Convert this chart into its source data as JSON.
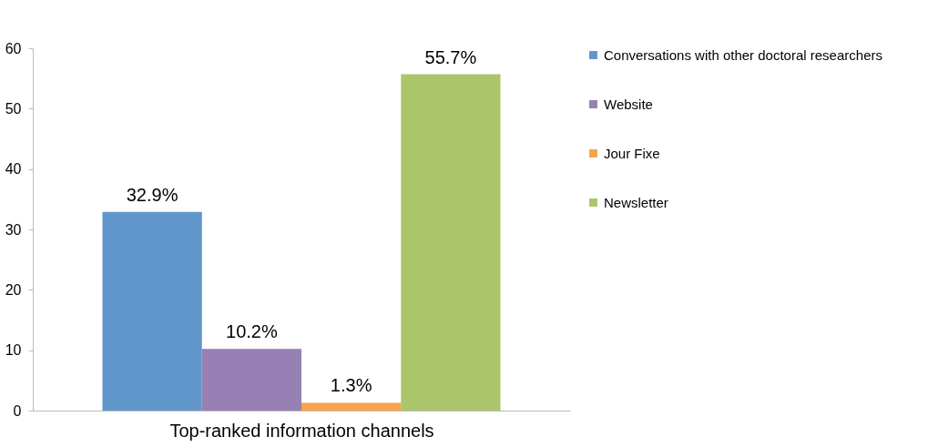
{
  "chart_data": {
    "type": "bar",
    "xlabel": "Top-ranked information channels",
    "categories": [
      null
    ],
    "series": [
      {
        "name": "Conversations with other doctoral researchers",
        "color": "#6096c9",
        "values": [
          32.9
        ],
        "value_labels": [
          "32.9%"
        ]
      },
      {
        "name": "Website",
        "color": "#9680b4",
        "values": [
          10.2
        ],
        "value_labels": [
          "10.2%"
        ]
      },
      {
        "name": "Jour Fixe",
        "color": "#f6a24f",
        "values": [
          1.3
        ],
        "value_labels": [
          "1.3%"
        ]
      },
      {
        "name": "Newsletter",
        "color": "#abc56a",
        "values": [
          55.7
        ],
        "value_labels": [
          "55.7%"
        ]
      }
    ],
    "ylim": [
      0,
      60
    ],
    "yticks": [
      0,
      10,
      20,
      30,
      40,
      50,
      60
    ],
    "grid": false,
    "legend": "right"
  }
}
